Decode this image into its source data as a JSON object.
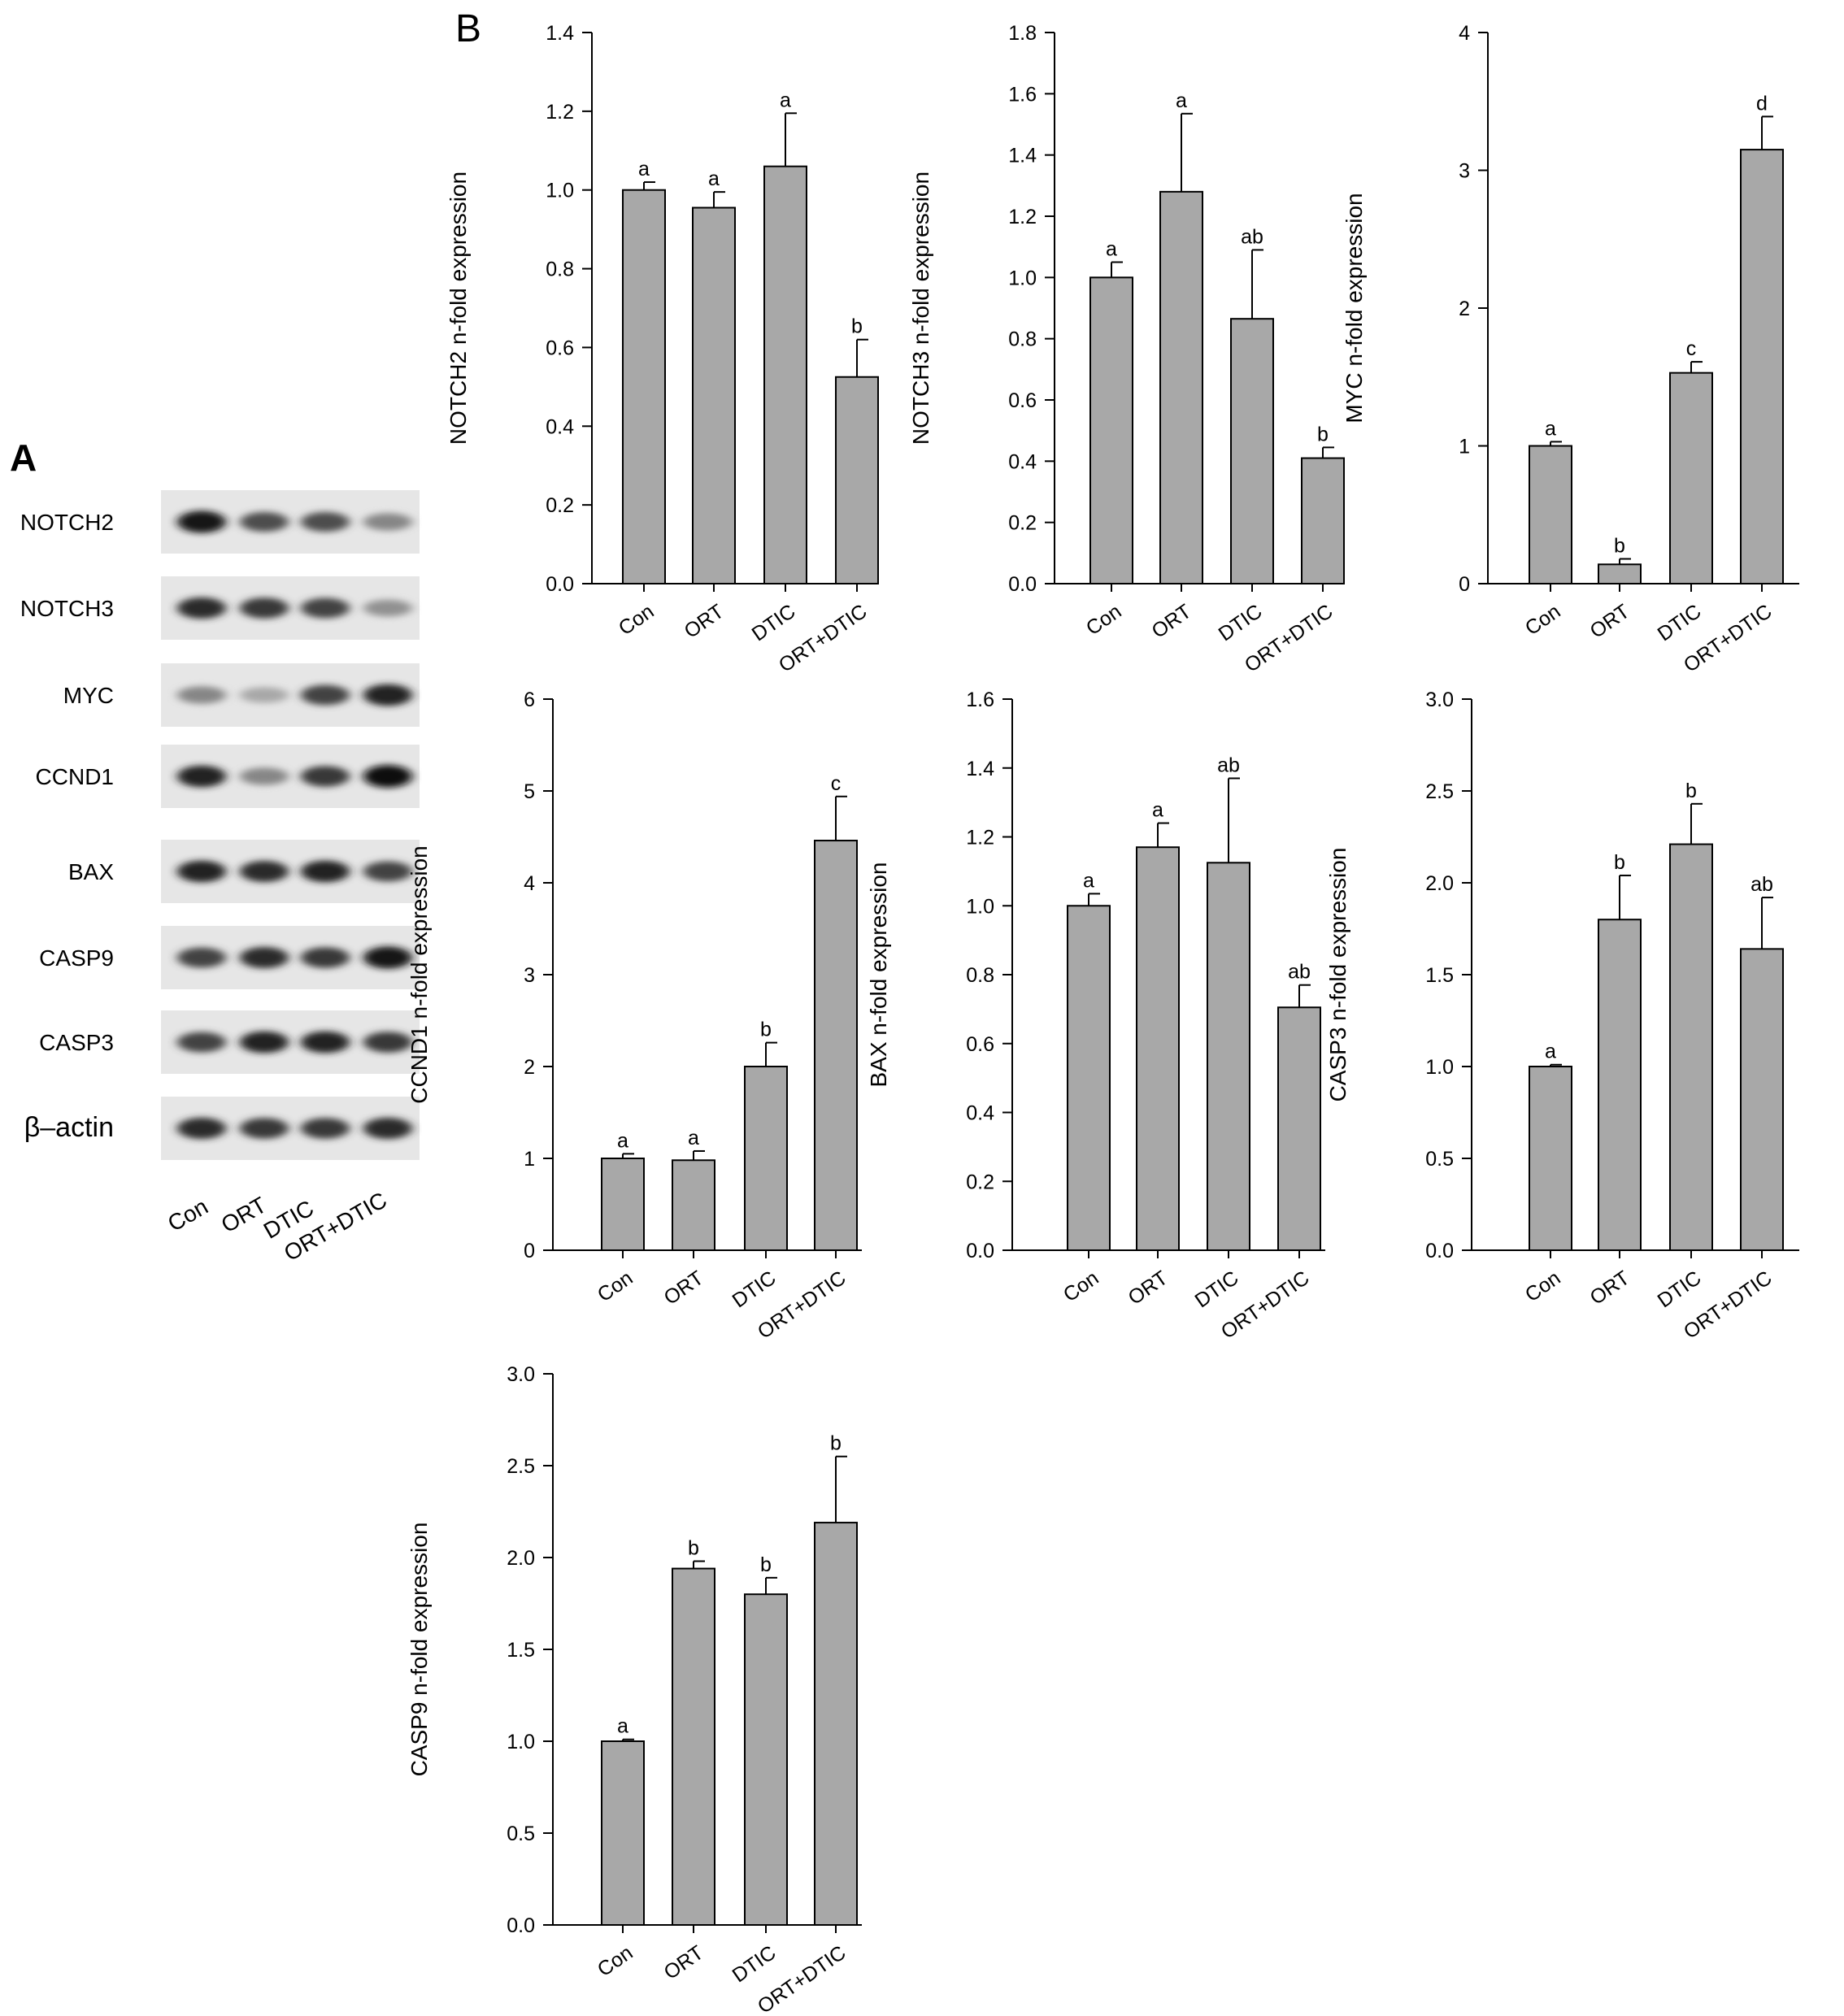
{
  "panels": {
    "a_label": "A",
    "b_label": "B"
  },
  "blot": {
    "rows": [
      {
        "protein": "NOTCH2",
        "intensities": [
          0.95,
          0.7,
          0.7,
          0.45
        ]
      },
      {
        "protein": "NOTCH3",
        "intensities": [
          0.85,
          0.8,
          0.75,
          0.4
        ]
      },
      {
        "protein": "MYC",
        "intensities": [
          0.45,
          0.3,
          0.75,
          0.9
        ]
      },
      {
        "protein": "CCND1",
        "intensities": [
          0.9,
          0.45,
          0.8,
          1.0
        ]
      },
      {
        "protein": "BAX",
        "intensities": [
          0.9,
          0.85,
          0.9,
          0.75
        ]
      },
      {
        "protein": "CASP9",
        "intensities": [
          0.75,
          0.85,
          0.8,
          0.95
        ]
      },
      {
        "protein": "CASP3",
        "intensities": [
          0.75,
          0.9,
          0.9,
          0.8
        ]
      },
      {
        "protein": "β–actin",
        "intensities": [
          0.85,
          0.8,
          0.8,
          0.85
        ]
      }
    ],
    "lanes": [
      "Con",
      "ORT",
      "DTIC",
      "ORT+DTIC"
    ]
  },
  "chart_data": [
    {
      "type": "bar",
      "categories": [
        "Con",
        "ORT",
        "DTIC",
        "ORT+DTIC"
      ],
      "values": [
        1.0,
        0.955,
        1.06,
        0.525
      ],
      "errors": [
        0.02,
        0.04,
        0.135,
        0.095
      ],
      "letters": [
        "a",
        "a",
        "a",
        "b"
      ],
      "ylabel": "NOTCH2 n-fold expression",
      "ylim": [
        0,
        1.4
      ],
      "yticks": [
        "0.0",
        "0.2",
        "0.4",
        "0.6",
        "0.8",
        "1.0",
        "1.2",
        "1.4"
      ],
      "bar_color": "#a8a8a8"
    },
    {
      "type": "bar",
      "categories": [
        "Con",
        "ORT",
        "DTIC",
        "ORT+DTIC"
      ],
      "values": [
        1.0,
        1.28,
        0.865,
        0.41
      ],
      "errors": [
        0.05,
        0.255,
        0.225,
        0.035
      ],
      "letters": [
        "a",
        "a",
        "ab",
        "b"
      ],
      "ylabel": "NOTCH3 n-fold expression",
      "ylim": [
        0,
        1.8
      ],
      "yticks": [
        "0.0",
        "0.2",
        "0.4",
        "0.6",
        "0.8",
        "1.0",
        "1.2",
        "1.4",
        "1.6",
        "1.8"
      ],
      "bar_color": "#a8a8a8"
    },
    {
      "type": "bar",
      "categories": [
        "Con",
        "ORT",
        "DTIC",
        "ORT+DTIC"
      ],
      "values": [
        1.0,
        0.14,
        1.53,
        3.15
      ],
      "errors": [
        0.03,
        0.04,
        0.08,
        0.24
      ],
      "letters": [
        "a",
        "b",
        "c",
        "d"
      ],
      "ylabel": "MYC n-fold expression",
      "ylim": [
        0,
        4
      ],
      "yticks": [
        "0",
        "1",
        "2",
        "3",
        "4"
      ],
      "bar_color": "#a8a8a8"
    },
    {
      "type": "bar",
      "categories": [
        "Con",
        "ORT",
        "DTIC",
        "ORT+DTIC"
      ],
      "values": [
        1.0,
        0.98,
        2.0,
        4.46
      ],
      "errors": [
        0.05,
        0.1,
        0.26,
        0.48
      ],
      "letters": [
        "a",
        "a",
        "b",
        "c"
      ],
      "ylabel": "CCND1 n-fold expression",
      "ylim": [
        0,
        6
      ],
      "yticks": [
        "0",
        "1",
        "2",
        "3",
        "4",
        "5",
        "6"
      ],
      "bar_color": "#a8a8a8"
    },
    {
      "type": "bar",
      "categories": [
        "Con",
        "ORT",
        "DTIC",
        "ORT+DTIC"
      ],
      "values": [
        1.0,
        1.17,
        1.125,
        0.705
      ],
      "errors": [
        0.035,
        0.07,
        0.245,
        0.065
      ],
      "letters": [
        "a",
        "a",
        "ab",
        "ab"
      ],
      "ylabel": "BAX n-fold expression",
      "ylim": [
        0,
        1.6
      ],
      "yticks": [
        "0.0",
        "0.2",
        "0.4",
        "0.6",
        "0.8",
        "1.0",
        "1.2",
        "1.4",
        "1.6"
      ],
      "bar_color": "#a8a8a8"
    },
    {
      "type": "bar",
      "categories": [
        "Con",
        "ORT",
        "DTIC",
        "ORT+DTIC"
      ],
      "values": [
        1.0,
        1.8,
        2.21,
        1.64
      ],
      "errors": [
        0.01,
        0.24,
        0.22,
        0.28
      ],
      "letters": [
        "a",
        "b",
        "b",
        "ab"
      ],
      "ylabel": "CASP3 n-fold expression",
      "ylim": [
        0,
        3.0
      ],
      "yticks": [
        "0.0",
        "0.5",
        "1.0",
        "1.5",
        "2.0",
        "2.5",
        "3.0"
      ],
      "bar_color": "#a8a8a8"
    },
    {
      "type": "bar",
      "categories": [
        "Con",
        "ORT",
        "DTIC",
        "ORT+DTIC"
      ],
      "values": [
        1.0,
        1.94,
        1.8,
        2.19
      ],
      "errors": [
        0.01,
        0.04,
        0.09,
        0.36
      ],
      "letters": [
        "a",
        "b",
        "b",
        "b"
      ],
      "ylabel": "CASP9 n-fold expression",
      "ylim": [
        0,
        3.0
      ],
      "yticks": [
        "0.0",
        "0.5",
        "1.0",
        "1.5",
        "2.0",
        "2.5",
        "3.0"
      ],
      "bar_color": "#a8a8a8"
    }
  ]
}
